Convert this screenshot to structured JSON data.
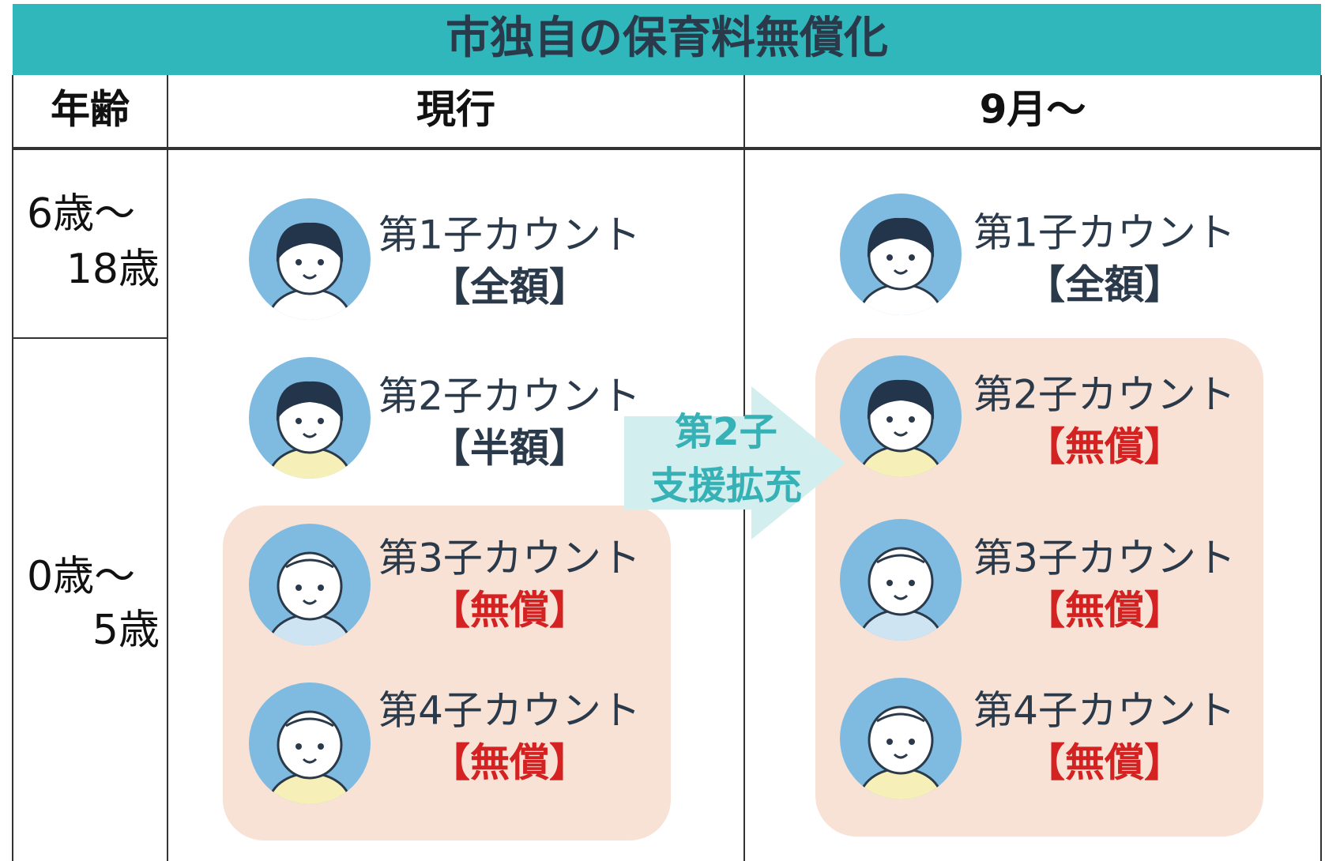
{
  "header": {
    "title": "市独自の保育料無償化"
  },
  "columns": [
    "年齢",
    "現行",
    "9月～"
  ],
  "ages": [
    {
      "lines": [
        "6歳～",
        "18歳"
      ]
    },
    {
      "lines": [
        "0歳～",
        "5歳"
      ]
    }
  ],
  "arrow": {
    "lines": [
      "第2子",
      "支援拡充"
    ]
  },
  "current": [
    {
      "label": "第1子カウント",
      "amount": "【全額】",
      "color": "#2b3a4a"
    },
    {
      "label": "第2子カウント",
      "amount": "【半額】",
      "color": "#2b3a4a"
    },
    {
      "label": "第3子カウント",
      "amount": "【無償】",
      "color": "#d42222"
    },
    {
      "label": "第4子カウント",
      "amount": "【無償】",
      "color": "#d42222"
    }
  ],
  "after": [
    {
      "label": "第1子カウント",
      "amount": "【全額】",
      "color": "#2b3a4a"
    },
    {
      "label": "第2子カウント",
      "amount": "【無償】",
      "color": "#d42222"
    },
    {
      "label": "第3子カウント",
      "amount": "【無償】",
      "color": "#d42222"
    },
    {
      "label": "第4子カウント",
      "amount": "【無償】",
      "color": "#d42222"
    }
  ]
}
